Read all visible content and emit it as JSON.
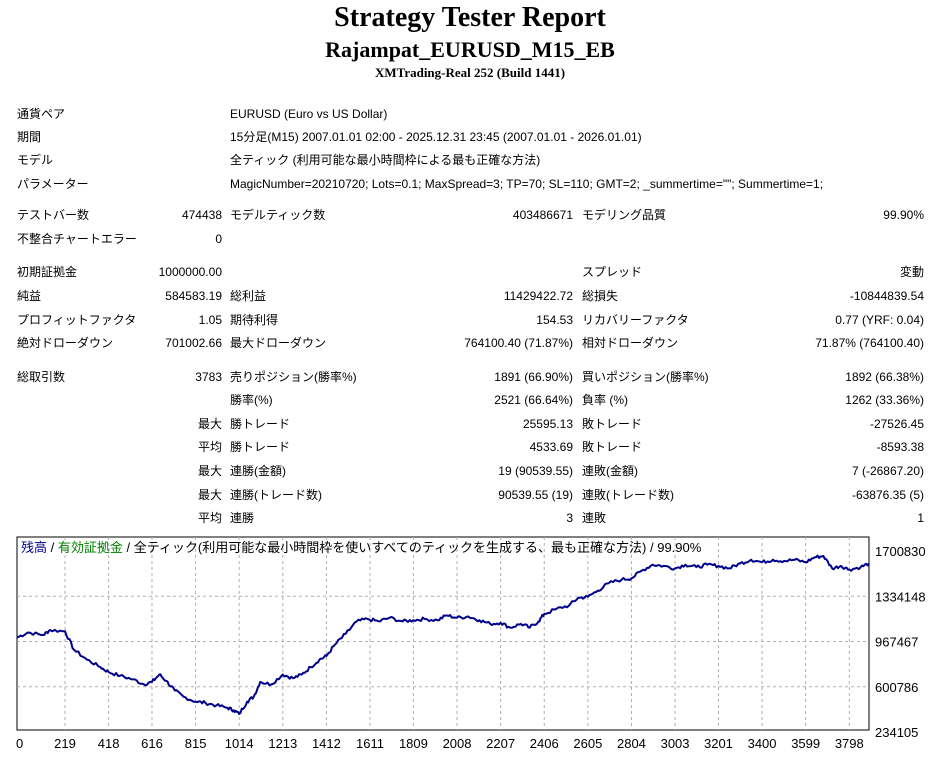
{
  "header": {
    "title": "Strategy Tester Report",
    "subtitle": "Rajampat_EURUSD_M15_EB",
    "server": "XMTrading-Real 252 (Build 1441)"
  },
  "info": [
    {
      "label": "通貨ペア",
      "value": "EURUSD (Euro vs US Dollar)"
    },
    {
      "label": "期間",
      "value": "15分足(M15) 2007.01.01 02:00 - 2025.12.31 23:45 (2007.01.01 - 2026.01.01)"
    },
    {
      "label": "モデル",
      "value": "全ティック (利用可能な最小時間枠による最も正確な方法)"
    },
    {
      "label": "パラメーター",
      "value": "MagicNumber=20210720; Lots=0.1; MaxSpread=3; TP=70; SL=110; GMT=2; _summertime=\"\"; Summertime=1;"
    }
  ],
  "stats": {
    "bars_label": "テストバー数",
    "bars": "474438",
    "ticks_label": "モデルティック数",
    "ticks": "403486671",
    "quality_label": "モデリング品質",
    "quality": "99.90%",
    "mismatch_label": "不整合チャートエラー",
    "mismatch": "0",
    "deposit_label": "初期証拠金",
    "deposit": "1000000.00",
    "spread_label": "スプレッド",
    "spread": "変動",
    "net_label": "純益",
    "net": "584583.19",
    "gross_profit_label": "総利益",
    "gross_profit": "11429422.72",
    "gross_loss_label": "総損失",
    "gross_loss": "-10844839.54",
    "pf_label": "プロフィットファクタ",
    "pf": "1.05",
    "expected_label": "期待利得",
    "expected": "154.53",
    "recovery_label": "リカバリーファクタ",
    "recovery": "0.77 (YRF: 0.04)",
    "abs_dd_label": "絶対ドローダウン",
    "abs_dd": "701002.66",
    "max_dd_label": "最大ドローダウン",
    "max_dd": "764100.40 (71.87%)",
    "rel_dd_label": "相対ドローダウン",
    "rel_dd": "71.87% (764100.40)",
    "total_trades_label": "総取引数",
    "total_trades": "3783",
    "short_label": "売りポジション(勝率%)",
    "short": "1891 (66.90%)",
    "long_label": "買いポジション(勝率%)",
    "long": "1892 (66.38%)",
    "win_label": "勝率(%)",
    "win": "2521 (66.64%)",
    "loss_label": "負率 (%)",
    "loss": "1262 (33.36%)",
    "max_word": "最大",
    "avg_word": "平均",
    "max_win_label": "勝トレード",
    "max_win": "25595.13",
    "max_loss_label": "敗トレード",
    "max_loss": "-27526.45",
    "avg_win_label": "勝トレード",
    "avg_win": "4533.69",
    "avg_loss_label": "敗トレード",
    "avg_loss": "-8593.38",
    "cons_win_amt_label": "連勝(金額)",
    "cons_win_amt": "19 (90539.55)",
    "cons_loss_amt_label": "連敗(金額)",
    "cons_loss_amt": "7 (-26867.20)",
    "cons_win_cnt_label": "連勝(トレード数)",
    "cons_win_cnt": "90539.55 (19)",
    "cons_loss_cnt_label": "連敗(トレード数)",
    "cons_loss_cnt": "-63876.35 (5)",
    "avg_cons_win_label": "連勝",
    "avg_cons_win": "3",
    "avg_cons_loss_label": "連敗",
    "avg_cons_loss": "1"
  },
  "chart_legend": {
    "balance": "残高",
    "sep1": " / ",
    "equity": "有効証拠金",
    "rest": " / 全ティック(利用可能な最小時間枠を使いすべてのティックを生成する、最も正確な方法) / 99.90%",
    "balance_color": "#00008b",
    "equity_color": "#008000"
  },
  "chart_data": {
    "type": "line",
    "xlabel": "",
    "ylabel": "",
    "x_ticks": [
      "0",
      "219",
      "418",
      "616",
      "815",
      "1014",
      "1213",
      "1412",
      "1611",
      "1809",
      "2008",
      "2207",
      "2406",
      "2605",
      "2804",
      "3003",
      "3201",
      "3400",
      "3599",
      "3798"
    ],
    "y_ticks": [
      "1700830",
      "1334148",
      "967467",
      "600786",
      "234105"
    ],
    "xlim": [
      0,
      3888
    ],
    "ylim": [
      234105,
      1700830
    ],
    "grid": true,
    "series": [
      {
        "name": "残高",
        "color": "#00008b",
        "points": [
          [
            0,
            1000000
          ],
          [
            50,
            1040000
          ],
          [
            120,
            1020000
          ],
          [
            150,
            1060000
          ],
          [
            219,
            1050000
          ],
          [
            260,
            900000
          ],
          [
            320,
            820000
          ],
          [
            380,
            760000
          ],
          [
            418,
            720000
          ],
          [
            470,
            690000
          ],
          [
            530,
            660000
          ],
          [
            580,
            620000
          ],
          [
            616,
            640000
          ],
          [
            650,
            700000
          ],
          [
            680,
            650000
          ],
          [
            720,
            570000
          ],
          [
            760,
            520000
          ],
          [
            815,
            480000
          ],
          [
            860,
            470000
          ],
          [
            910,
            450000
          ],
          [
            960,
            430000
          ],
          [
            990,
            410000
          ],
          [
            1014,
            380000
          ],
          [
            1050,
            480000
          ],
          [
            1080,
            520000
          ],
          [
            1110,
            640000
          ],
          [
            1160,
            620000
          ],
          [
            1213,
            700000
          ],
          [
            1260,
            670000
          ],
          [
            1300,
            700000
          ],
          [
            1340,
            760000
          ],
          [
            1380,
            820000
          ],
          [
            1412,
            850000
          ],
          [
            1450,
            940000
          ],
          [
            1500,
            1030000
          ],
          [
            1550,
            1130000
          ],
          [
            1600,
            1150000
          ],
          [
            1650,
            1130000
          ],
          [
            1700,
            1160000
          ],
          [
            1760,
            1130000
          ],
          [
            1809,
            1140000
          ],
          [
            1860,
            1150000
          ],
          [
            1920,
            1140000
          ],
          [
            1960,
            1180000
          ],
          [
            2008,
            1160000
          ],
          [
            2060,
            1170000
          ],
          [
            2110,
            1140000
          ],
          [
            2160,
            1110000
          ],
          [
            2207,
            1120000
          ],
          [
            2250,
            1080000
          ],
          [
            2300,
            1110000
          ],
          [
            2340,
            1080000
          ],
          [
            2380,
            1130000
          ],
          [
            2406,
            1190000
          ],
          [
            2460,
            1230000
          ],
          [
            2520,
            1260000
          ],
          [
            2560,
            1320000
          ],
          [
            2605,
            1330000
          ],
          [
            2650,
            1380000
          ],
          [
            2700,
            1440000
          ],
          [
            2760,
            1470000
          ],
          [
            2804,
            1480000
          ],
          [
            2850,
            1540000
          ],
          [
            2900,
            1590000
          ],
          [
            2950,
            1580000
          ],
          [
            3003,
            1560000
          ],
          [
            3050,
            1590000
          ],
          [
            3100,
            1570000
          ],
          [
            3150,
            1590000
          ],
          [
            3201,
            1580000
          ],
          [
            3250,
            1560000
          ],
          [
            3300,
            1600000
          ],
          [
            3350,
            1630000
          ],
          [
            3400,
            1610000
          ],
          [
            3450,
            1630000
          ],
          [
            3500,
            1620000
          ],
          [
            3550,
            1630000
          ],
          [
            3599,
            1610000
          ],
          [
            3640,
            1650000
          ],
          [
            3680,
            1660000
          ],
          [
            3720,
            1560000
          ],
          [
            3760,
            1580000
          ],
          [
            3798,
            1550000
          ],
          [
            3850,
            1570000
          ],
          [
            3888,
            1600000
          ]
        ]
      }
    ]
  }
}
